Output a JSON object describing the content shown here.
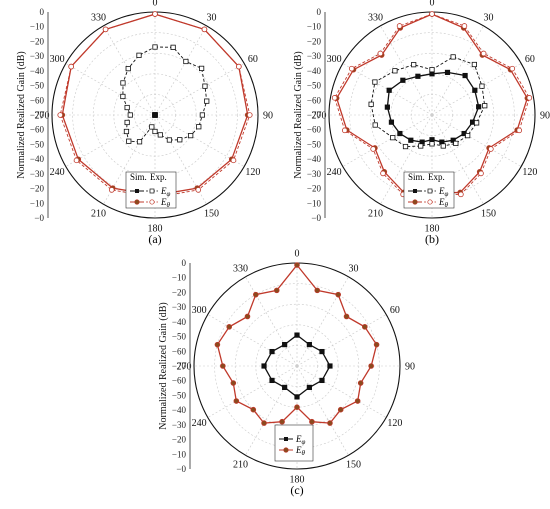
{
  "chart_data": [
    {
      "type": "polar-line",
      "panel_label": "(a)",
      "ylabel": "Normalized Realized Gain (dB)",
      "radial_ticks": [
        "0",
        "−10",
        "−20",
        "−30",
        "−40",
        "−50",
        "−60",
        "−70",
        "−60",
        "−50",
        "−40",
        "−30",
        "−20",
        "−10",
        "−0"
      ],
      "radial_range": [
        -50,
        0
      ],
      "angle_ticks": [
        "0",
        "30",
        "60",
        "90",
        "120",
        "150",
        "180",
        "210",
        "240",
        "270",
        "300",
        "330"
      ],
      "legend": {
        "sim_header": "Sim.",
        "exp_header": "Exp.",
        "entries": [
          "E_phi",
          "E_theta"
        ]
      },
      "series": [
        {
          "name": "Eφ Sim.",
          "color": "#111111",
          "marker": "filled-square",
          "angles": [
            0,
            30,
            60,
            90,
            120,
            150,
            180,
            210,
            240,
            270,
            300,
            330
          ],
          "values": [
            -50,
            -50,
            -50,
            -50,
            -50,
            -50,
            -50,
            -50,
            -50,
            -50,
            -50,
            -50
          ]
        },
        {
          "name": "Eφ Exp.",
          "color": "#111111",
          "marker": "open-square",
          "angles": [
            0,
            15,
            30,
            45,
            60,
            75,
            90,
            105,
            120,
            135,
            150,
            165,
            180,
            195,
            210,
            225,
            240,
            255,
            270,
            285,
            300,
            315,
            330,
            345
          ],
          "values": [
            -17,
            -16,
            -20,
            -18,
            -22,
            -24,
            -27,
            -28,
            -30,
            -33,
            -36,
            -40,
            -42,
            -44,
            -35,
            -32,
            -34,
            -36,
            -38,
            -36,
            -32,
            -28,
            -24,
            -20
          ]
        },
        {
          "name": "Eθ Sim.",
          "color": "#c0392b",
          "marker": "filled-circle",
          "angles": [
            0,
            30,
            60,
            90,
            120,
            150,
            180,
            210,
            240,
            270,
            300,
            330
          ],
          "values": [
            -1,
            -2,
            -3,
            -5,
            -7,
            -9,
            -11,
            -9,
            -7,
            -5,
            -3,
            -2
          ]
        },
        {
          "name": "Eθ Exp.",
          "color": "#c0392b",
          "marker": "open-circle",
          "angles": [
            0,
            30,
            60,
            90,
            120,
            150,
            180,
            210,
            240,
            270,
            300,
            330
          ],
          "values": [
            -1,
            -2,
            -3,
            -4,
            -6,
            -8,
            -10,
            -8,
            -6,
            -4,
            -3,
            -2
          ]
        }
      ]
    },
    {
      "type": "polar-line",
      "panel_label": "(b)",
      "ylabel": "Normalized Realized Gain (dB)",
      "radial_ticks": [
        "0",
        "−10",
        "−20",
        "−30",
        "−40",
        "−50",
        "−60",
        "−70",
        "−60",
        "−50",
        "−40",
        "−30",
        "−20",
        "−10",
        "−0"
      ],
      "radial_range": [
        -50,
        0
      ],
      "angle_ticks": [
        "0",
        "30",
        "60",
        "90",
        "120",
        "150",
        "180",
        "210",
        "240",
        "270",
        "300",
        "330"
      ],
      "legend": {
        "sim_header": "Sim.",
        "exp_header": "Exp.",
        "entries": [
          "E_phi",
          "E_theta"
        ]
      },
      "series": [
        {
          "name": "Eφ Sim.",
          "color": "#111111",
          "marker": "filled-square",
          "angles": [
            0,
            20,
            40,
            60,
            80,
            100,
            120,
            140,
            160,
            180,
            200,
            220,
            240,
            260,
            280,
            300,
            320,
            340
          ],
          "values": [
            -30,
            -28,
            -25,
            -26,
            -27,
            -30,
            -32,
            -34,
            -36,
            -38,
            -36,
            -34,
            -32,
            -30,
            -28,
            -26,
            -28,
            -30
          ]
        },
        {
          "name": "Eφ Exp.",
          "color": "#111111",
          "marker": "open-square",
          "angles": [
            0,
            20,
            40,
            60,
            80,
            100,
            120,
            140,
            160,
            180,
            200,
            220,
            240,
            260,
            280,
            300,
            320,
            340
          ],
          "values": [
            -28,
            -20,
            -18,
            -22,
            -24,
            -28,
            -30,
            -32,
            -34,
            -36,
            -34,
            -30,
            -28,
            -22,
            -20,
            -18,
            -22,
            -24
          ]
        },
        {
          "name": "Eθ Sim.",
          "color": "#c0392b",
          "marker": "filled-circle",
          "angles": [
            0,
            20,
            40,
            60,
            80,
            100,
            120,
            140,
            160,
            180,
            200,
            220,
            240,
            260,
            280,
            300,
            320,
            340
          ],
          "values": [
            -1,
            -5,
            -12,
            -6,
            -3,
            -8,
            -18,
            -14,
            -10,
            -12,
            -10,
            -14,
            -18,
            -8,
            -3,
            -6,
            -12,
            -5
          ]
        },
        {
          "name": "Eθ Exp.",
          "color": "#c0392b",
          "marker": "open-circle",
          "angles": [
            0,
            20,
            40,
            60,
            80,
            100,
            120,
            140,
            160,
            180,
            200,
            220,
            240,
            260,
            280,
            300,
            320,
            340
          ],
          "values": [
            -1,
            -4,
            -11,
            -5,
            -2,
            -7,
            -17,
            -13,
            -9,
            -11,
            -9,
            -13,
            -17,
            -7,
            -2,
            -5,
            -11,
            -4
          ]
        }
      ]
    },
    {
      "type": "polar-line",
      "panel_label": "(c)",
      "ylabel": "Normalized Realized Gain (dB)",
      "radial_ticks": [
        "0",
        "−10",
        "−20",
        "−30",
        "−40",
        "−50",
        "−60",
        "−70",
        "−60",
        "−50",
        "−40",
        "−30",
        "−20",
        "−10",
        "−0"
      ],
      "radial_range": [
        -50,
        0
      ],
      "angle_ticks": [
        "0",
        "30",
        "60",
        "90",
        "120",
        "150",
        "180",
        "210",
        "240",
        "270",
        "300",
        "330"
      ],
      "legend": {
        "entries": [
          "E_phi",
          "E_theta"
        ]
      },
      "series": [
        {
          "name": "Eφ",
          "color": "#111111",
          "marker": "filled-square",
          "angles": [
            0,
            30,
            60,
            90,
            120,
            150,
            180,
            210,
            240,
            270,
            300,
            330
          ],
          "values": [
            -35,
            -38,
            -36,
            -34,
            -36,
            -38,
            -35,
            -38,
            -36,
            -34,
            -36,
            -38
          ]
        },
        {
          "name": "Eθ",
          "color": "#c0392b",
          "marker": "filled-circle",
          "angles": [
            0,
            15,
            30,
            45,
            60,
            75,
            90,
            105,
            120,
            135,
            150,
            165,
            180,
            195,
            210,
            225,
            240,
            255,
            270,
            285,
            300,
            315,
            330,
            345
          ],
          "values": [
            -1,
            -12,
            -10,
            -16,
            -12,
            -10,
            -14,
            -18,
            -16,
            -20,
            -18,
            -22,
            -30,
            -22,
            -18,
            -20,
            -16,
            -18,
            -14,
            -10,
            -12,
            -16,
            -10,
            -12
          ]
        }
      ]
    }
  ],
  "legend_symbols": {
    "phi": "φ",
    "theta": "θ",
    "E": "E"
  }
}
